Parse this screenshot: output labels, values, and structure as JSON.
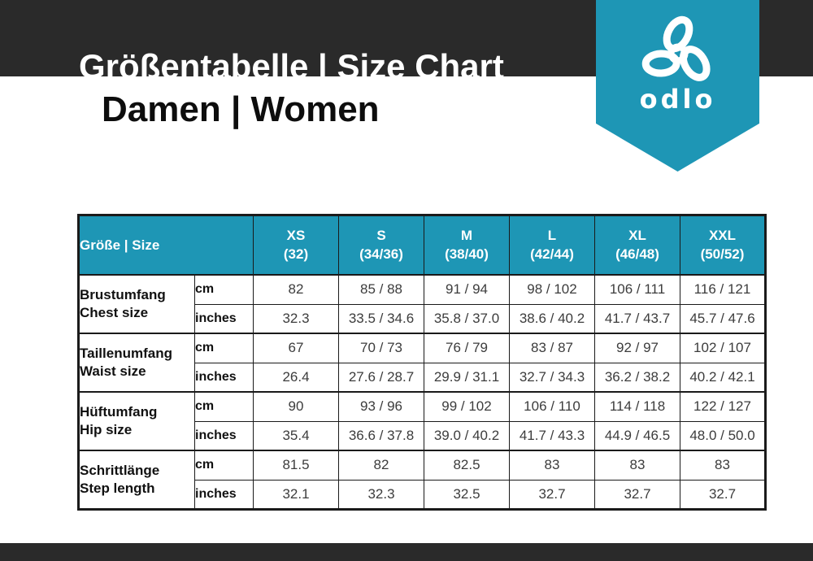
{
  "header": {
    "title": "Größentabelle | Size Chart",
    "subtitle": "Damen | Women"
  },
  "logo": {
    "brand": "odlo"
  },
  "colors": {
    "teal": "#1e96b5",
    "dark_bar": "#2a2a2a",
    "value_text": "#3c3c3c"
  },
  "table": {
    "corner_label": "Größe | Size",
    "units": {
      "cm": "cm",
      "inches": "inches"
    },
    "size_columns": [
      {
        "size": "XS",
        "range": "(32)"
      },
      {
        "size": "S",
        "range": "(34/36)"
      },
      {
        "size": "M",
        "range": "(38/40)"
      },
      {
        "size": "L",
        "range": "(42/44)"
      },
      {
        "size": "XL",
        "range": "(46/48)"
      },
      {
        "size": "XXL",
        "range": "(50/52)"
      }
    ],
    "measurements": [
      {
        "label_de": "Brustumfang",
        "label_en": "Chest size",
        "cm": [
          "82",
          "85 / 88",
          "91 / 94",
          "98 / 102",
          "106 / 111",
          "116 / 121"
        ],
        "inches": [
          "32.3",
          "33.5 / 34.6",
          "35.8 / 37.0",
          "38.6 / 40.2",
          "41.7 / 43.7",
          "45.7 / 47.6"
        ]
      },
      {
        "label_de": "Taillenumfang",
        "label_en": "Waist size",
        "cm": [
          "67",
          "70 / 73",
          "76 / 79",
          "83 / 87",
          "92 / 97",
          "102 / 107"
        ],
        "inches": [
          "26.4",
          "27.6 / 28.7",
          "29.9 / 31.1",
          "32.7 / 34.3",
          "36.2 / 38.2",
          "40.2 / 42.1"
        ]
      },
      {
        "label_de": "Hüftumfang",
        "label_en": "Hip size",
        "cm": [
          "90",
          "93 / 96",
          "99 / 102",
          "106 / 110",
          "114 / 118",
          "122 / 127"
        ],
        "inches": [
          "35.4",
          "36.6 / 37.8",
          "39.0 / 40.2",
          "41.7 / 43.3",
          "44.9 / 46.5",
          "48.0 / 50.0"
        ]
      },
      {
        "label_de": "Schrittlänge",
        "label_en": "Step length",
        "cm": [
          "81.5",
          "82",
          "82.5",
          "83",
          "83",
          "83"
        ],
        "inches": [
          "32.1",
          "32.3",
          "32.5",
          "32.7",
          "32.7",
          "32.7"
        ]
      }
    ]
  }
}
